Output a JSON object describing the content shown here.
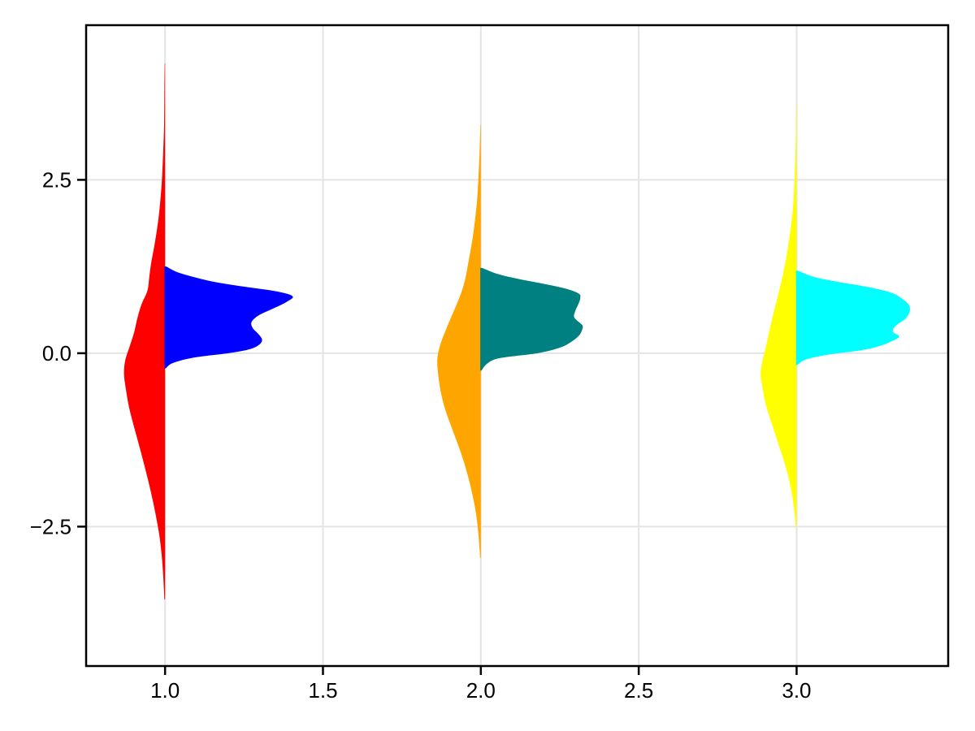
{
  "figure": {
    "background": "#FFFFFF"
  },
  "chart_data": {
    "type": "violin",
    "variant": "split-half-violin",
    "title": "",
    "xlabel": "",
    "ylabel": "",
    "xlim": [
      0.75,
      3.48
    ],
    "ylim": [
      -4.51,
      4.73
    ],
    "grid": {
      "show": true,
      "color": "#E4E4E4"
    },
    "frame_color": "#000000",
    "tick_label_color": "#000000",
    "x_ticks": [
      {
        "value": 1.0,
        "label": "1.0"
      },
      {
        "value": 1.5,
        "label": "1.5"
      },
      {
        "value": 2.0,
        "label": "2.0"
      },
      {
        "value": 2.5,
        "label": "2.5"
      },
      {
        "value": 3.0,
        "label": "3.0"
      }
    ],
    "y_ticks": [
      {
        "value": 2.5,
        "label": "2.5"
      },
      {
        "value": 0.0,
        "label": "0.0"
      },
      {
        "value": -2.5,
        "label": "−2.5"
      }
    ],
    "groups": [
      {
        "x": 1,
        "halves": [
          {
            "side": "left",
            "color": "#FF0000",
            "color_name": "red",
            "distribution": "normal-kde",
            "span": [
              -3.55,
              4.18
            ],
            "peak_halfwidth": 0.13,
            "profile": [
              [
                -3.55,
                0.002
              ],
              [
                -3.2,
                0.006
              ],
              [
                -2.9,
                0.011
              ],
              [
                -2.6,
                0.019
              ],
              [
                -2.3,
                0.031
              ],
              [
                -2.0,
                0.045
              ],
              [
                -1.7,
                0.061
              ],
              [
                -1.4,
                0.078
              ],
              [
                -1.1,
                0.096
              ],
              [
                -0.8,
                0.113
              ],
              [
                -0.55,
                0.123
              ],
              [
                -0.3,
                0.13
              ],
              [
                -0.1,
                0.126
              ],
              [
                0.1,
                0.112
              ],
              [
                0.3,
                0.098
              ],
              [
                0.5,
                0.088
              ],
              [
                0.7,
                0.075
              ],
              [
                0.9,
                0.056
              ],
              [
                1.1,
                0.05
              ],
              [
                1.3,
                0.044
              ],
              [
                1.6,
                0.032
              ],
              [
                1.9,
                0.022
              ],
              [
                2.2,
                0.015
              ],
              [
                2.5,
                0.01
              ],
              [
                2.9,
                0.006
              ],
              [
                3.3,
                0.003
              ],
              [
                3.8,
                0.002
              ],
              [
                4.18,
                0.001
              ]
            ]
          },
          {
            "side": "right",
            "color": "#0000FF",
            "color_name": "blue",
            "distribution": "uniform-kde",
            "span": [
              -0.22,
              1.25
            ],
            "peak_halfwidth": 0.404,
            "profile": [
              [
                -0.22,
                0.002
              ],
              [
                -0.14,
                0.025
              ],
              [
                -0.06,
                0.095
              ],
              [
                0.0,
                0.2
              ],
              [
                0.06,
                0.27
              ],
              [
                0.13,
                0.3
              ],
              [
                0.2,
                0.307
              ],
              [
                0.28,
                0.295
              ],
              [
                0.36,
                0.278
              ],
              [
                0.45,
                0.274
              ],
              [
                0.55,
                0.298
              ],
              [
                0.65,
                0.345
              ],
              [
                0.74,
                0.385
              ],
              [
                0.82,
                0.404
              ],
              [
                0.89,
                0.355
              ],
              [
                0.96,
                0.25
              ],
              [
                1.03,
                0.155
              ],
              [
                1.1,
                0.09
              ],
              [
                1.17,
                0.038
              ],
              [
                1.25,
                0.004
              ]
            ]
          }
        ]
      },
      {
        "x": 2,
        "halves": [
          {
            "side": "left",
            "color": "#FFA500",
            "color_name": "orange",
            "distribution": "normal-kde",
            "span": [
              -2.95,
              3.3
            ],
            "peak_halfwidth": 0.138,
            "profile": [
              [
                -2.95,
                0.002
              ],
              [
                -2.65,
                0.007
              ],
              [
                -2.35,
                0.014
              ],
              [
                -2.05,
                0.026
              ],
              [
                -1.75,
                0.042
              ],
              [
                -1.45,
                0.062
              ],
              [
                -1.15,
                0.086
              ],
              [
                -0.85,
                0.11
              ],
              [
                -0.6,
                0.125
              ],
              [
                -0.35,
                0.134
              ],
              [
                -0.1,
                0.138
              ],
              [
                0.1,
                0.13
              ],
              [
                0.3,
                0.114
              ],
              [
                0.5,
                0.096
              ],
              [
                0.7,
                0.077
              ],
              [
                0.9,
                0.06
              ],
              [
                1.1,
                0.048
              ],
              [
                1.35,
                0.038
              ],
              [
                1.6,
                0.028
              ],
              [
                1.9,
                0.019
              ],
              [
                2.2,
                0.012
              ],
              [
                2.5,
                0.008
              ],
              [
                2.9,
                0.004
              ],
              [
                3.3,
                0.001
              ]
            ]
          },
          {
            "side": "right",
            "color": "#008080",
            "color_name": "teal",
            "distribution": "uniform-kde",
            "span": [
              -0.25,
              1.23
            ],
            "peak_halfwidth": 0.322,
            "profile": [
              [
                -0.25,
                0.002
              ],
              [
                -0.15,
                0.02
              ],
              [
                -0.07,
                0.06
              ],
              [
                0.0,
                0.18
              ],
              [
                0.08,
                0.25
              ],
              [
                0.16,
                0.285
              ],
              [
                0.25,
                0.31
              ],
              [
                0.33,
                0.32
              ],
              [
                0.4,
                0.322
              ],
              [
                0.47,
                0.305
              ],
              [
                0.53,
                0.295
              ],
              [
                0.62,
                0.3
              ],
              [
                0.72,
                0.31
              ],
              [
                0.8,
                0.315
              ],
              [
                0.86,
                0.31
              ],
              [
                0.93,
                0.27
              ],
              [
                1.0,
                0.2
              ],
              [
                1.07,
                0.12
              ],
              [
                1.14,
                0.055
              ],
              [
                1.23,
                0.004
              ]
            ]
          }
        ]
      },
      {
        "x": 3,
        "halves": [
          {
            "side": "left",
            "color": "#FFFF00",
            "color_name": "yellow",
            "distribution": "normal-kde",
            "span": [
              -2.52,
              3.6
            ],
            "peak_halfwidth": 0.114,
            "profile": [
              [
                -2.52,
                0.002
              ],
              [
                -2.25,
                0.008
              ],
              [
                -2.0,
                0.016
              ],
              [
                -1.75,
                0.028
              ],
              [
                -1.5,
                0.044
              ],
              [
                -1.25,
                0.062
              ],
              [
                -1.0,
                0.08
              ],
              [
                -0.75,
                0.097
              ],
              [
                -0.5,
                0.108
              ],
              [
                -0.3,
                0.114
              ],
              [
                -0.1,
                0.108
              ],
              [
                0.1,
                0.097
              ],
              [
                0.35,
                0.085
              ],
              [
                0.6,
                0.072
              ],
              [
                0.85,
                0.058
              ],
              [
                1.1,
                0.045
              ],
              [
                1.35,
                0.034
              ],
              [
                1.6,
                0.025
              ],
              [
                1.9,
                0.016
              ],
              [
                2.2,
                0.01
              ],
              [
                2.6,
                0.006
              ],
              [
                3.0,
                0.003
              ],
              [
                3.3,
                0.002
              ],
              [
                3.6,
                0.001
              ]
            ]
          },
          {
            "side": "right",
            "color": "#00FFFF",
            "color_name": "cyan",
            "distribution": "uniform-kde",
            "span": [
              -0.17,
              1.19
            ],
            "peak_halfwidth": 0.358,
            "profile": [
              [
                -0.17,
                0.002
              ],
              [
                -0.09,
                0.03
              ],
              [
                -0.02,
                0.1
              ],
              [
                0.04,
                0.2
              ],
              [
                0.1,
                0.26
              ],
              [
                0.17,
                0.3
              ],
              [
                0.24,
                0.325
              ],
              [
                0.31,
                0.305
              ],
              [
                0.4,
                0.315
              ],
              [
                0.5,
                0.345
              ],
              [
                0.6,
                0.358
              ],
              [
                0.7,
                0.355
              ],
              [
                0.8,
                0.33
              ],
              [
                0.88,
                0.295
              ],
              [
                0.96,
                0.22
              ],
              [
                1.03,
                0.13
              ],
              [
                1.1,
                0.055
              ],
              [
                1.19,
                0.004
              ]
            ]
          }
        ]
      }
    ]
  }
}
